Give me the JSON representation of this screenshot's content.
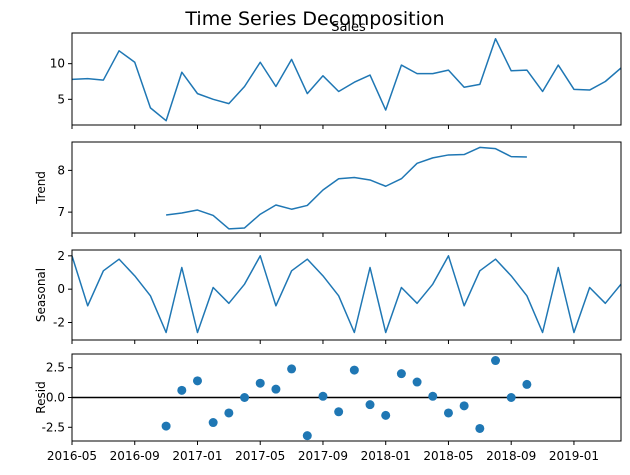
{
  "chart_data": {
    "type": "line",
    "title": "Time Series Decomposition",
    "color": "#1f77b4",
    "x_ticks": [
      "2016-05",
      "2016-09",
      "2017-01",
      "2017-05",
      "2017-09",
      "2018-01",
      "2018-05",
      "2018-09",
      "2019-01"
    ],
    "dates": [
      "2016-05",
      "2016-06",
      "2016-07",
      "2016-08",
      "2016-09",
      "2016-10",
      "2016-11",
      "2016-12",
      "2017-01",
      "2017-02",
      "2017-03",
      "2017-04",
      "2017-05",
      "2017-06",
      "2017-07",
      "2017-08",
      "2017-09",
      "2017-10",
      "2017-11",
      "2017-12",
      "2018-01",
      "2018-02",
      "2018-03",
      "2018-04",
      "2018-05",
      "2018-06",
      "2018-07",
      "2018-08",
      "2018-09",
      "2018-10",
      "2018-11",
      "2018-12",
      "2019-01",
      "2019-02",
      "2019-03",
      "2019-04"
    ],
    "panels": [
      {
        "id": "sales",
        "kind": "line",
        "title": "Sales",
        "ylabel": "",
        "yticks": [
          "5",
          "10"
        ],
        "ylim": [
          1.4,
          14.3
        ],
        "values": [
          7.8,
          7.9,
          7.7,
          11.8,
          10.2,
          3.8,
          2.0,
          8.8,
          5.8,
          5.0,
          4.4,
          6.8,
          10.2,
          6.8,
          10.6,
          5.8,
          8.3,
          6.1,
          7.4,
          8.4,
          3.5,
          9.8,
          8.6,
          8.6,
          9.1,
          6.7,
          7.1,
          13.5,
          9.0,
          9.1,
          6.1,
          9.8,
          6.4,
          6.3,
          7.5,
          9.4
        ]
      },
      {
        "id": "trend",
        "kind": "line",
        "title": "",
        "ylabel": "Trend",
        "yticks": [
          "7",
          "8"
        ],
        "ylim": [
          6.5,
          8.68
        ],
        "values": [
          null,
          null,
          null,
          null,
          null,
          null,
          6.93,
          6.98,
          7.05,
          6.92,
          6.6,
          6.62,
          6.95,
          7.17,
          7.07,
          7.16,
          7.53,
          7.8,
          7.83,
          7.77,
          7.62,
          7.8,
          8.17,
          8.3,
          8.37,
          8.38,
          8.55,
          8.52,
          8.33,
          8.32,
          null,
          null,
          null,
          null,
          null,
          null
        ]
      },
      {
        "id": "seasonal",
        "kind": "line",
        "title": "",
        "ylabel": "Seasonal",
        "yticks": [
          "-2",
          "0",
          "2"
        ],
        "ylim": [
          -3.05,
          2.35
        ],
        "values": [
          2.0,
          -1.0,
          1.1,
          1.8,
          0.8,
          -0.4,
          -2.6,
          1.3,
          -2.6,
          0.1,
          -0.85,
          0.3,
          2.0,
          -1.0,
          1.1,
          1.8,
          0.8,
          -0.4,
          -2.6,
          1.3,
          -2.6,
          0.1,
          -0.85,
          0.3,
          2.0,
          -1.0,
          1.1,
          1.8,
          0.8,
          -0.4,
          -2.6,
          1.3,
          -2.6,
          0.1,
          -0.85,
          0.3
        ]
      },
      {
        "id": "resid",
        "kind": "scatter",
        "title": "",
        "ylabel": "Resid",
        "yticks": [
          "-2.5",
          "0.0",
          "2.5"
        ],
        "ylim": [
          -3.65,
          3.65
        ],
        "zero_line": true,
        "values": [
          null,
          null,
          null,
          null,
          null,
          null,
          -2.4,
          0.6,
          1.4,
          -2.1,
          -1.3,
          0.0,
          1.2,
          0.7,
          2.4,
          -3.2,
          0.1,
          -1.2,
          2.3,
          -0.6,
          -1.5,
          2.0,
          1.3,
          0.1,
          -1.3,
          -0.7,
          -2.6,
          3.1,
          0.0,
          1.1,
          null,
          null,
          null,
          null,
          null,
          null
        ]
      }
    ]
  }
}
